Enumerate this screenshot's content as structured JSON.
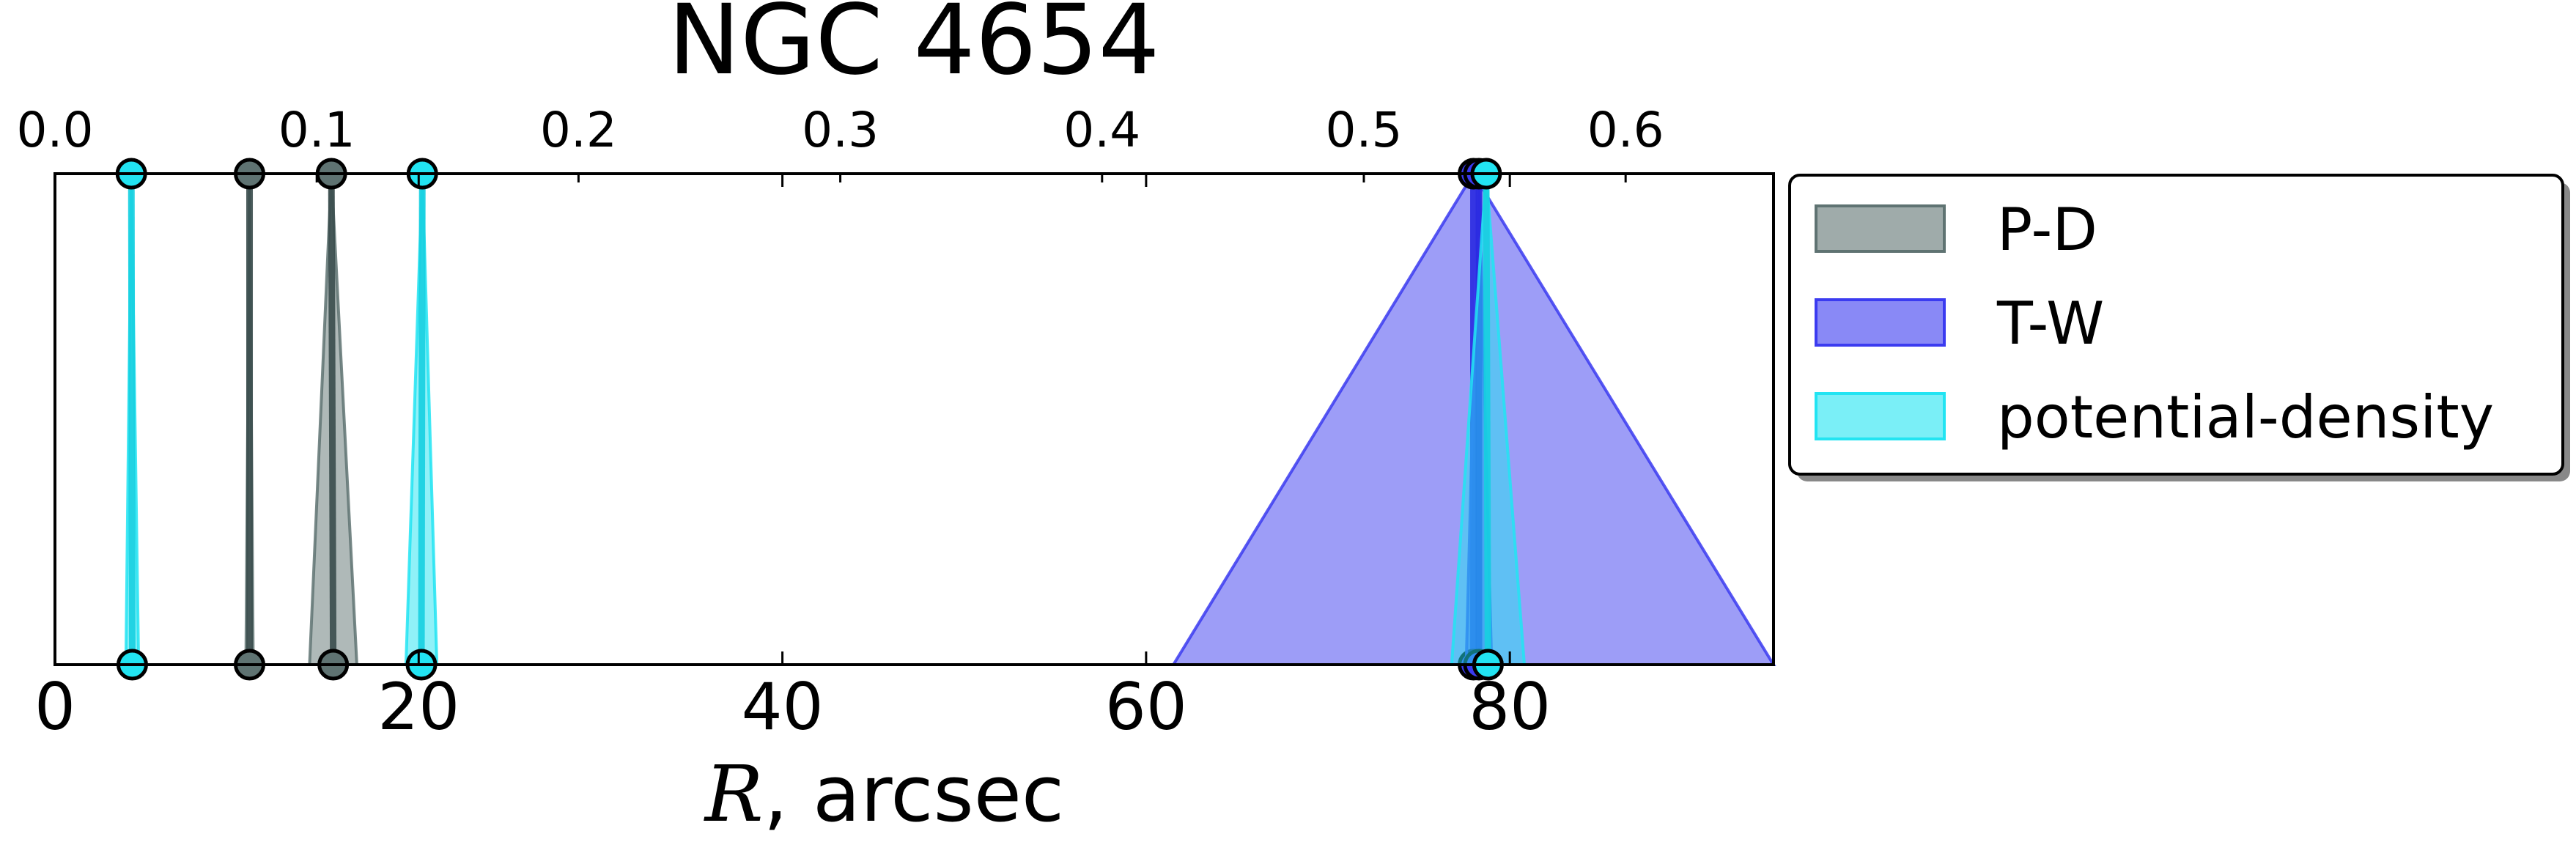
{
  "chart_data": {
    "type": "area",
    "title": "NGC 4654",
    "xlabel_italic": "R",
    "xlabel_rest": ", arcsec",
    "xlim": [
      0,
      94.5
    ],
    "x_ticks": [
      0,
      20,
      40,
      60,
      80
    ],
    "x_tick_labels": [
      "0",
      "20",
      "40",
      "60",
      "80"
    ],
    "top_axis": {
      "xlim": [
        0.0,
        0.6565
      ],
      "ticks": [
        0.0,
        0.1,
        0.2,
        0.3,
        0.4,
        0.5,
        0.6
      ],
      "tick_labels": [
        "0.0",
        "0.1",
        "0.2",
        "0.3",
        "0.4",
        "0.5",
        "0.6"
      ]
    },
    "legend": {
      "placement": "outside-right-top",
      "entries": [
        {
          "label": "P-D",
          "color": "#5f7372"
        },
        {
          "label": "T-W",
          "color": "#3b3bf0"
        },
        {
          "label": "potential-density",
          "color": "#22e4f2"
        }
      ]
    },
    "series": [
      {
        "name": "P-D",
        "color": "#5f7372",
        "line_color": "#3a4c4c",
        "estimates": [
          {
            "top": 10.7,
            "bottom_lo": 10.5,
            "bottom_hi": 10.9
          },
          {
            "top": 15.2,
            "bottom_lo": 14.0,
            "bottom_hi": 16.6
          }
        ]
      },
      {
        "name": "T-W",
        "color": "#3b3bf0",
        "line_color": "#2a2ae0",
        "estimates": [
          {
            "top": 78.0,
            "bottom_lo": 61.5,
            "bottom_hi": 94.5
          },
          {
            "top": 78.3,
            "bottom_lo": 77.6,
            "bottom_hi": 79.0
          }
        ]
      },
      {
        "name": "potential-density",
        "color": "#22e4f2",
        "line_color": "#16cfe0",
        "estimates": [
          {
            "top": 4.2,
            "bottom_lo": 3.9,
            "bottom_hi": 4.6
          },
          {
            "top": 20.2,
            "bottom_lo": 19.3,
            "bottom_hi": 21.0
          },
          {
            "top": 78.7,
            "bottom_lo": 76.8,
            "bottom_hi": 80.8
          }
        ]
      }
    ]
  }
}
